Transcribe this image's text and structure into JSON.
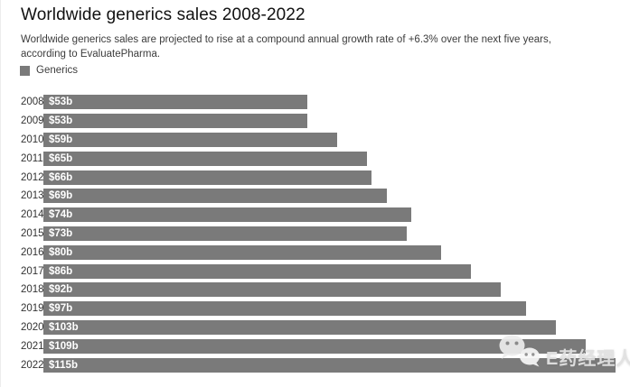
{
  "header": {
    "title": "Worldwide generics sales 2008-2022",
    "subtitle": "Worldwide generics sales are projected to rise at a compound annual growth rate of +6.3% over the next five years, according to EvaluatePharma."
  },
  "legend": {
    "label": "Generics",
    "swatch_color": "#7a7a7a"
  },
  "colors": {
    "bar": "#7a7a7a",
    "value_label": "#ffffff",
    "year_label": "#333333"
  },
  "watermark": {
    "text": "E药经理人",
    "icon": "wechat-icon"
  },
  "chart_data": {
    "type": "bar",
    "orientation": "horizontal",
    "title": "Worldwide generics sales 2008-2022",
    "series_name": "Generics",
    "categories": [
      "2008",
      "2009",
      "2010",
      "2011",
      "2012",
      "2013",
      "2014",
      "2015",
      "2016",
      "2017",
      "2018",
      "2019",
      "2020",
      "2021",
      "2022"
    ],
    "values": [
      53,
      53,
      59,
      65,
      66,
      69,
      74,
      73,
      80,
      86,
      92,
      97,
      103,
      109,
      115
    ],
    "value_labels": [
      "$53b",
      "$53b",
      "$59b",
      "$65b",
      "$66b",
      "$69b",
      "$74b",
      "$73b",
      "$80b",
      "$86b",
      "$92b",
      "$97b",
      "$103b",
      "$109b",
      "$115b"
    ],
    "xlabel": "",
    "ylabel": "",
    "unit": "billion USD",
    "xlim": [
      0,
      115
    ],
    "grid": false,
    "legend_position": "top-left"
  }
}
